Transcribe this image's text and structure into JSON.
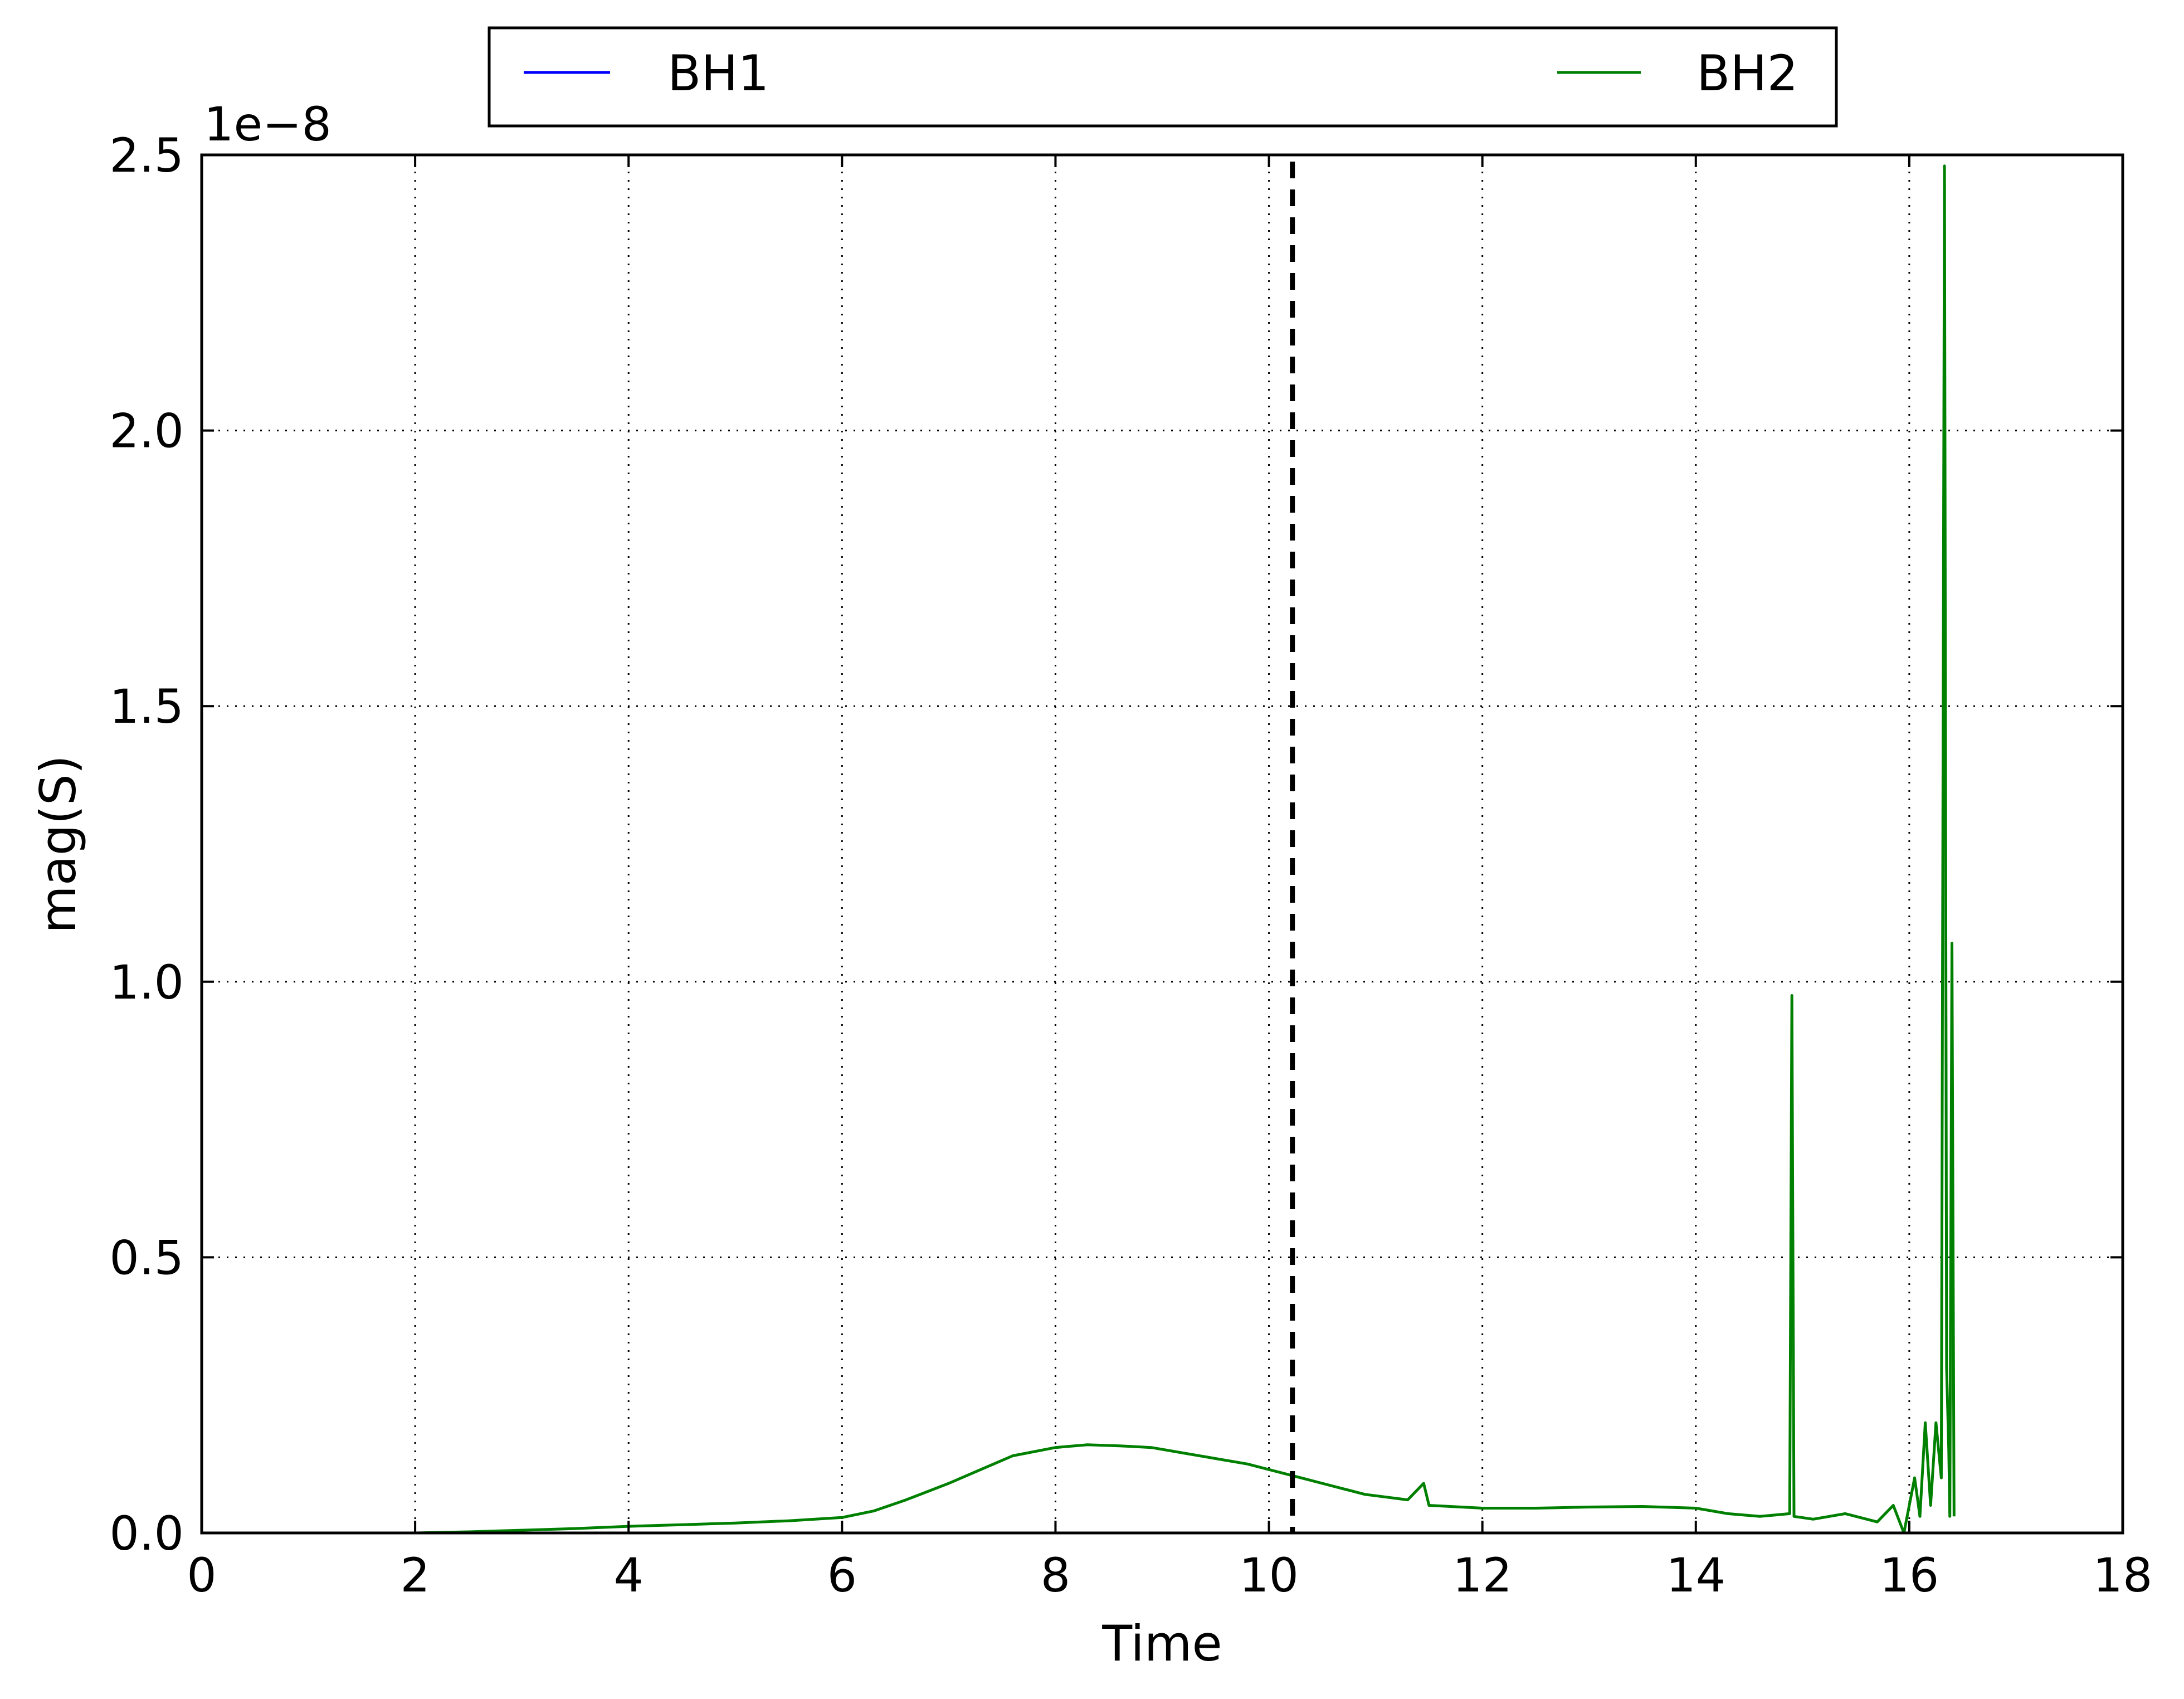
{
  "chart_data": {
    "type": "line",
    "title": "",
    "xlabel": "Time",
    "ylabel": "mag(S)",
    "y_offset_label": "1e−8",
    "xlim": [
      0,
      18
    ],
    "ylim": [
      0,
      2.5
    ],
    "x_ticks": [
      "0",
      "2",
      "4",
      "6",
      "8",
      "10",
      "12",
      "14",
      "16",
      "18"
    ],
    "y_ticks": [
      "0.0",
      "0.5",
      "1.0",
      "1.5",
      "2.0",
      "2.5"
    ],
    "grid": true,
    "grid_style": "dotted",
    "legend_position": "top-center",
    "vertical_marker": {
      "x": 10.22,
      "style": "dashed",
      "color": "#000000"
    },
    "series": [
      {
        "name": "BH1",
        "color": "#0000ff",
        "x": [],
        "y": []
      },
      {
        "name": "BH2",
        "color": "#008000",
        "x": [
          0,
          1,
          2,
          2.5,
          3,
          3.5,
          4,
          4.5,
          5,
          5.5,
          6,
          6.3,
          6.6,
          7,
          7.3,
          7.6,
          8,
          8.3,
          8.6,
          8.9,
          9.2,
          9.5,
          9.8,
          10.1,
          10.3,
          10.5,
          10.7,
          10.9,
          11.1,
          11.3,
          11.45,
          11.5,
          12,
          12.5,
          13,
          13.5,
          14,
          14.3,
          14.6,
          14.88,
          14.9,
          14.92,
          15.1,
          15.4,
          15.7,
          15.85,
          15.95,
          16.05,
          16.1,
          16.15,
          16.2,
          16.25,
          16.3,
          16.33,
          16.35,
          16.37,
          16.38,
          16.4,
          16.42
        ],
        "y": [
          0,
          0,
          0,
          0.002,
          0.005,
          0.008,
          0.012,
          0.015,
          0.018,
          0.022,
          0.028,
          0.04,
          0.06,
          0.09,
          0.115,
          0.14,
          0.155,
          0.16,
          0.158,
          0.155,
          0.145,
          0.135,
          0.125,
          0.11,
          0.1,
          0.09,
          0.08,
          0.07,
          0.065,
          0.06,
          0.09,
          0.05,
          0.045,
          0.045,
          0.047,
          0.048,
          0.045,
          0.035,
          0.03,
          0.035,
          0.975,
          0.03,
          0.025,
          0.035,
          0.02,
          0.05,
          0.0,
          0.1,
          0.03,
          0.2,
          0.05,
          0.2,
          0.1,
          2.48,
          0.3,
          0.15,
          0.03,
          1.07,
          0.03
        ]
      }
    ]
  }
}
